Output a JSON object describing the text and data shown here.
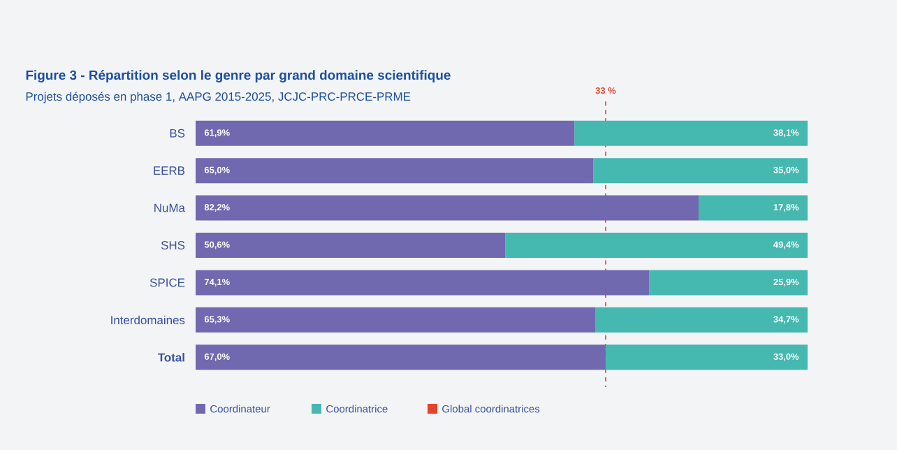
{
  "chart_data": {
    "type": "bar",
    "orientation": "horizontal",
    "stacked": true,
    "title": "Figure 3 - Répartition selon le genre par grand domaine scientifique",
    "subtitle": "Projets déposés en phase 1, AAPG 2015-2025, JCJC-PRC-PRCE-PRME",
    "categories": [
      "BS",
      "EERB",
      "NuMa",
      "SHS",
      "SPICE",
      "Interdomaines",
      "Total"
    ],
    "series": [
      {
        "name": "Coordinateur",
        "color": "#7069b0",
        "values": [
          61.9,
          65.0,
          82.2,
          50.6,
          74.1,
          65.3,
          67.0
        ],
        "value_labels": [
          "61,9%",
          "65,0%",
          "82,2%",
          "50,6%",
          "74,1%",
          "65,3%",
          "67,0%"
        ]
      },
      {
        "name": "Coordinatrice",
        "color": "#45b8b0",
        "values": [
          38.1,
          35.0,
          17.8,
          49.4,
          25.9,
          34.7,
          33.0
        ],
        "value_labels": [
          "38,1%",
          "35,0%",
          "17,8%",
          "49,4%",
          "25,9%",
          "34,7%",
          "33,0%"
        ]
      }
    ],
    "ref_lines": [
      {
        "axis": "x",
        "value": 67,
        "label": "Global coordinatrices",
        "color": "#e8412c",
        "line_style": "dashed"
      }
    ],
    "annotations": [
      "33 %"
    ],
    "legend": "bottom"
  }
}
